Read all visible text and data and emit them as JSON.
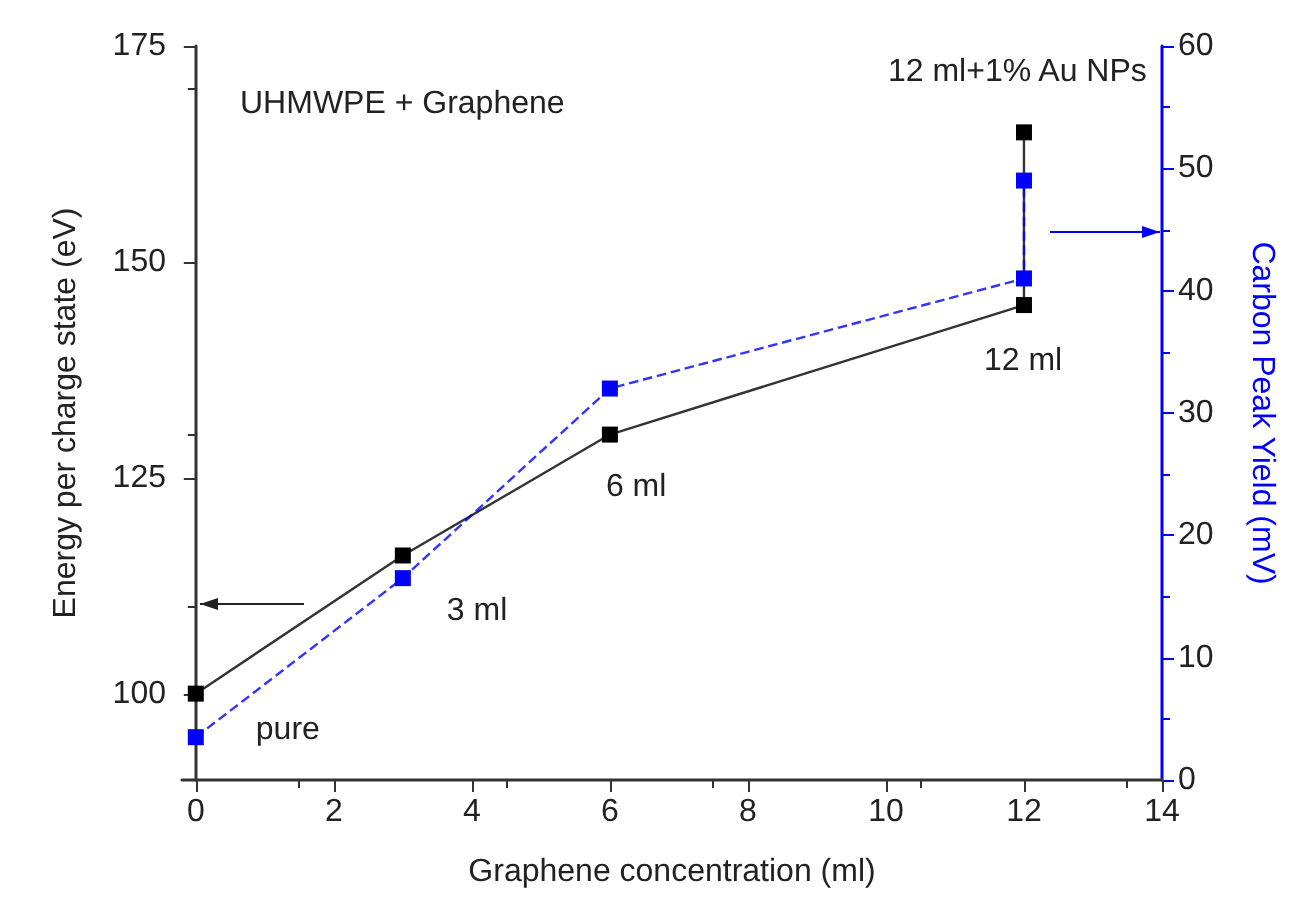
{
  "chart_data": {
    "type": "line",
    "xlabel": "Graphene concentration (ml)",
    "ylabel": "Energy per charge state (eV)",
    "y2label": "Carbon Peak Yield (mV)",
    "xlim": [
      -0.2,
      14
    ],
    "xticks": [
      0,
      2,
      4,
      6,
      8,
      10,
      12,
      14
    ],
    "ylim": [
      90,
      175
    ],
    "yticks": [
      100,
      125,
      150,
      175
    ],
    "y2lim": [
      0,
      60
    ],
    "y2ticks": [
      0,
      10,
      20,
      30,
      40,
      50,
      60
    ],
    "marker": "square",
    "series": [
      {
        "color": "#000000",
        "line_style": "solid",
        "x": [
          0,
          3,
          6,
          12,
          12
        ],
        "values": [
          100,
          116,
          130,
          145,
          165
        ]
      },
      {
        "color": "#0000ff",
        "line_style": "dashed",
        "axis": "y2",
        "x": [
          0,
          3,
          6,
          12,
          12
        ],
        "values": [
          3.5,
          16.5,
          32,
          41,
          49
        ]
      }
    ],
    "annotations": [
      "UHMWPE + Graphene",
      {
        "text": "pure",
        "x": 0,
        "y": 100
      },
      {
        "text": "3 ml",
        "x": 3,
        "y": 116
      },
      {
        "text": "6 ml",
        "x": 6,
        "y": 130
      },
      {
        "text": "12 ml",
        "x": 12,
        "y": 145
      },
      {
        "text": "12 ml+1% Au NPs",
        "x": 12,
        "y": 165
      }
    ]
  }
}
